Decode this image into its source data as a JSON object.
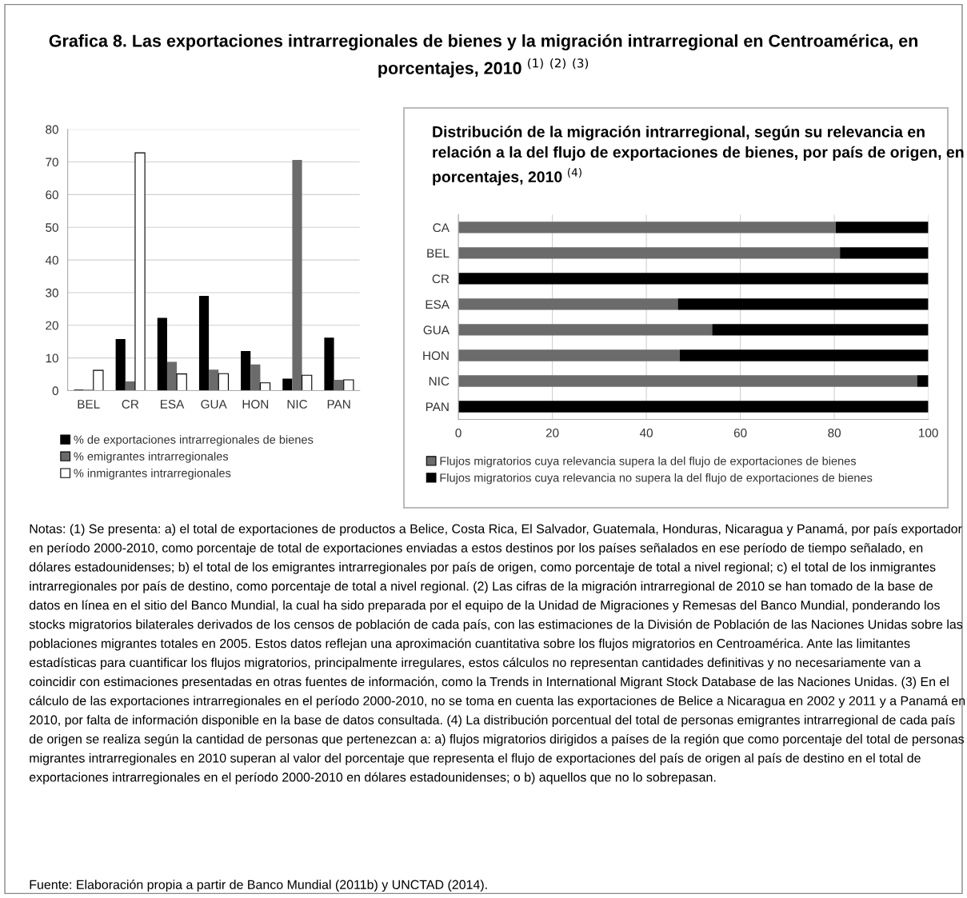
{
  "chart_data": [
    {
      "type": "bar",
      "title": "Grafica 8. Las exportaciones intrarregionales de bienes y la migración intrarregional en Centroamérica, en porcentajes, 2010 $^{(1)}$ $^{(2)}$ $^{(3)}$",
      "categories": [
        "BEL",
        "CR",
        "ESA",
        "GUA",
        "HON",
        "NIC",
        "PAN"
      ],
      "series": [
        {
          "name": "% de exportaciones intrarregionales de bienes",
          "color": "#000000",
          "values": [
            0.3,
            15.8,
            22.3,
            29.0,
            12.1,
            3.7,
            16.2
          ]
        },
        {
          "name": "% emigrantes intrarregionales",
          "color": "#6b6b6b",
          "values": [
            0.3,
            2.8,
            8.8,
            6.4,
            8.0,
            70.6,
            3.3
          ]
        },
        {
          "name": "% inmigrantes intrarregionales",
          "color": "#ffffff",
          "values": [
            6.2,
            72.8,
            5.1,
            5.2,
            2.4,
            4.7,
            3.3
          ]
        }
      ],
      "ylim": [
        0,
        80
      ],
      "yticks": [
        0,
        10,
        20,
        30,
        40,
        50,
        60,
        70,
        80
      ],
      "grid": "y",
      "legend": "bottom"
    },
    {
      "type": "bar",
      "orientation": "horizontal",
      "stacked": true,
      "title": "Distribución de la migración intrarregional, según su relevancia en relación a la del flujo de exportaciones de bienes, por país de origen, en porcentajes, 2010 $^{(4)}$",
      "categories": [
        "CA",
        "BEL",
        "CR",
        "ESA",
        "GUA",
        "HON",
        "NIC",
        "PAN"
      ],
      "series": [
        {
          "name": "Flujos migratorios cuya relevancia supera la del flujo de exportaciones de bienes",
          "color": "#6b6b6b",
          "values": [
            80.3,
            81.2,
            0,
            46.7,
            54.0,
            47.1,
            97.6,
            0
          ]
        },
        {
          "name": "Flujos migratorios cuya relevancia no supera la del flujo de exportaciones de bienes",
          "color": "#000000",
          "values": [
            19.7,
            18.8,
            100,
            53.3,
            46.0,
            52.9,
            2.4,
            100
          ]
        }
      ],
      "xlim": [
        0,
        100
      ],
      "xticks": [
        0,
        20,
        40,
        60,
        80,
        100
      ],
      "grid": "x",
      "legend": "bottom",
      "annotations": [
        "Notas: (1) Se presenta: a) el total de exportaciones de productos a Belice, Costa Rica, El Salvador, Guatemala, Honduras, Nicaragua y Panamá, por país exportador en período 2000-2010, como porcentaje de total de exportaciones enviadas a estos destinos por los países señalados en ese período de tiempo señalado, en dólares estadounidenses; b) el total de los emigrantes intrarregionales por país de origen, como porcentaje de total a nivel regional; c) el total de los inmigrantes intrarregionales por país de destino, como porcentaje de total a nivel regional. (2) Las cifras de la migración intrarregional de 2010 se han tomado de la base de datos en línea en el sitio del Banco Mundial, la cual ha sido preparada por el equipo de la Unidad de Migraciones y Remesas del Banco Mundial, ponderando los stocks migratorios bilaterales derivados de los censos de población de cada país, con las estimaciones de la División de Población de las Naciones Unidas sobre las poblaciones migrantes totales en 2005. Estos datos reflejan una aproximación cuantitativa sobre los flujos migratorios en Centroamérica. Ante las limitantes estadísticas para cuantificar los flujos migratorios, principalmente irregulares, estos cálculos no representan cantidades definitivas y no necesariamente van a coincidir con estimaciones presentadas en otras fuentes de información, como la Trends in International Migrant Stock Database de las Naciones Unidas. (3) En el cálculo de las exportaciones intrarregionales en el período 2000-2010, no se toma en cuenta las exportaciones de Belice a Nicaragua en 2002 y 2011 y a Panamá en 2010, por falta de información disponible en la base de datos consultada. (4) La distribución porcentual del total de personas emigrantes intrarregional de cada país de origen se realiza según la cantidad de personas que pertenezcan a: a) flujos migratorios dirigidos a países de la región que como porcentaje del total de personas migrantes intrarregionales en 2010 superan al valor del porcentaje que representa el flujo de exportaciones del país de origen al país de destino en el total de exportaciones intrarregionales en el período 2000-2010 en dólares estadounidenses; o b) aquellos que no lo sobrepasan.",
        "Fuente: Elaboración propia a partir de Banco Mundial (2011b) y UNCTAD (2014)."
      ]
    }
  ]
}
